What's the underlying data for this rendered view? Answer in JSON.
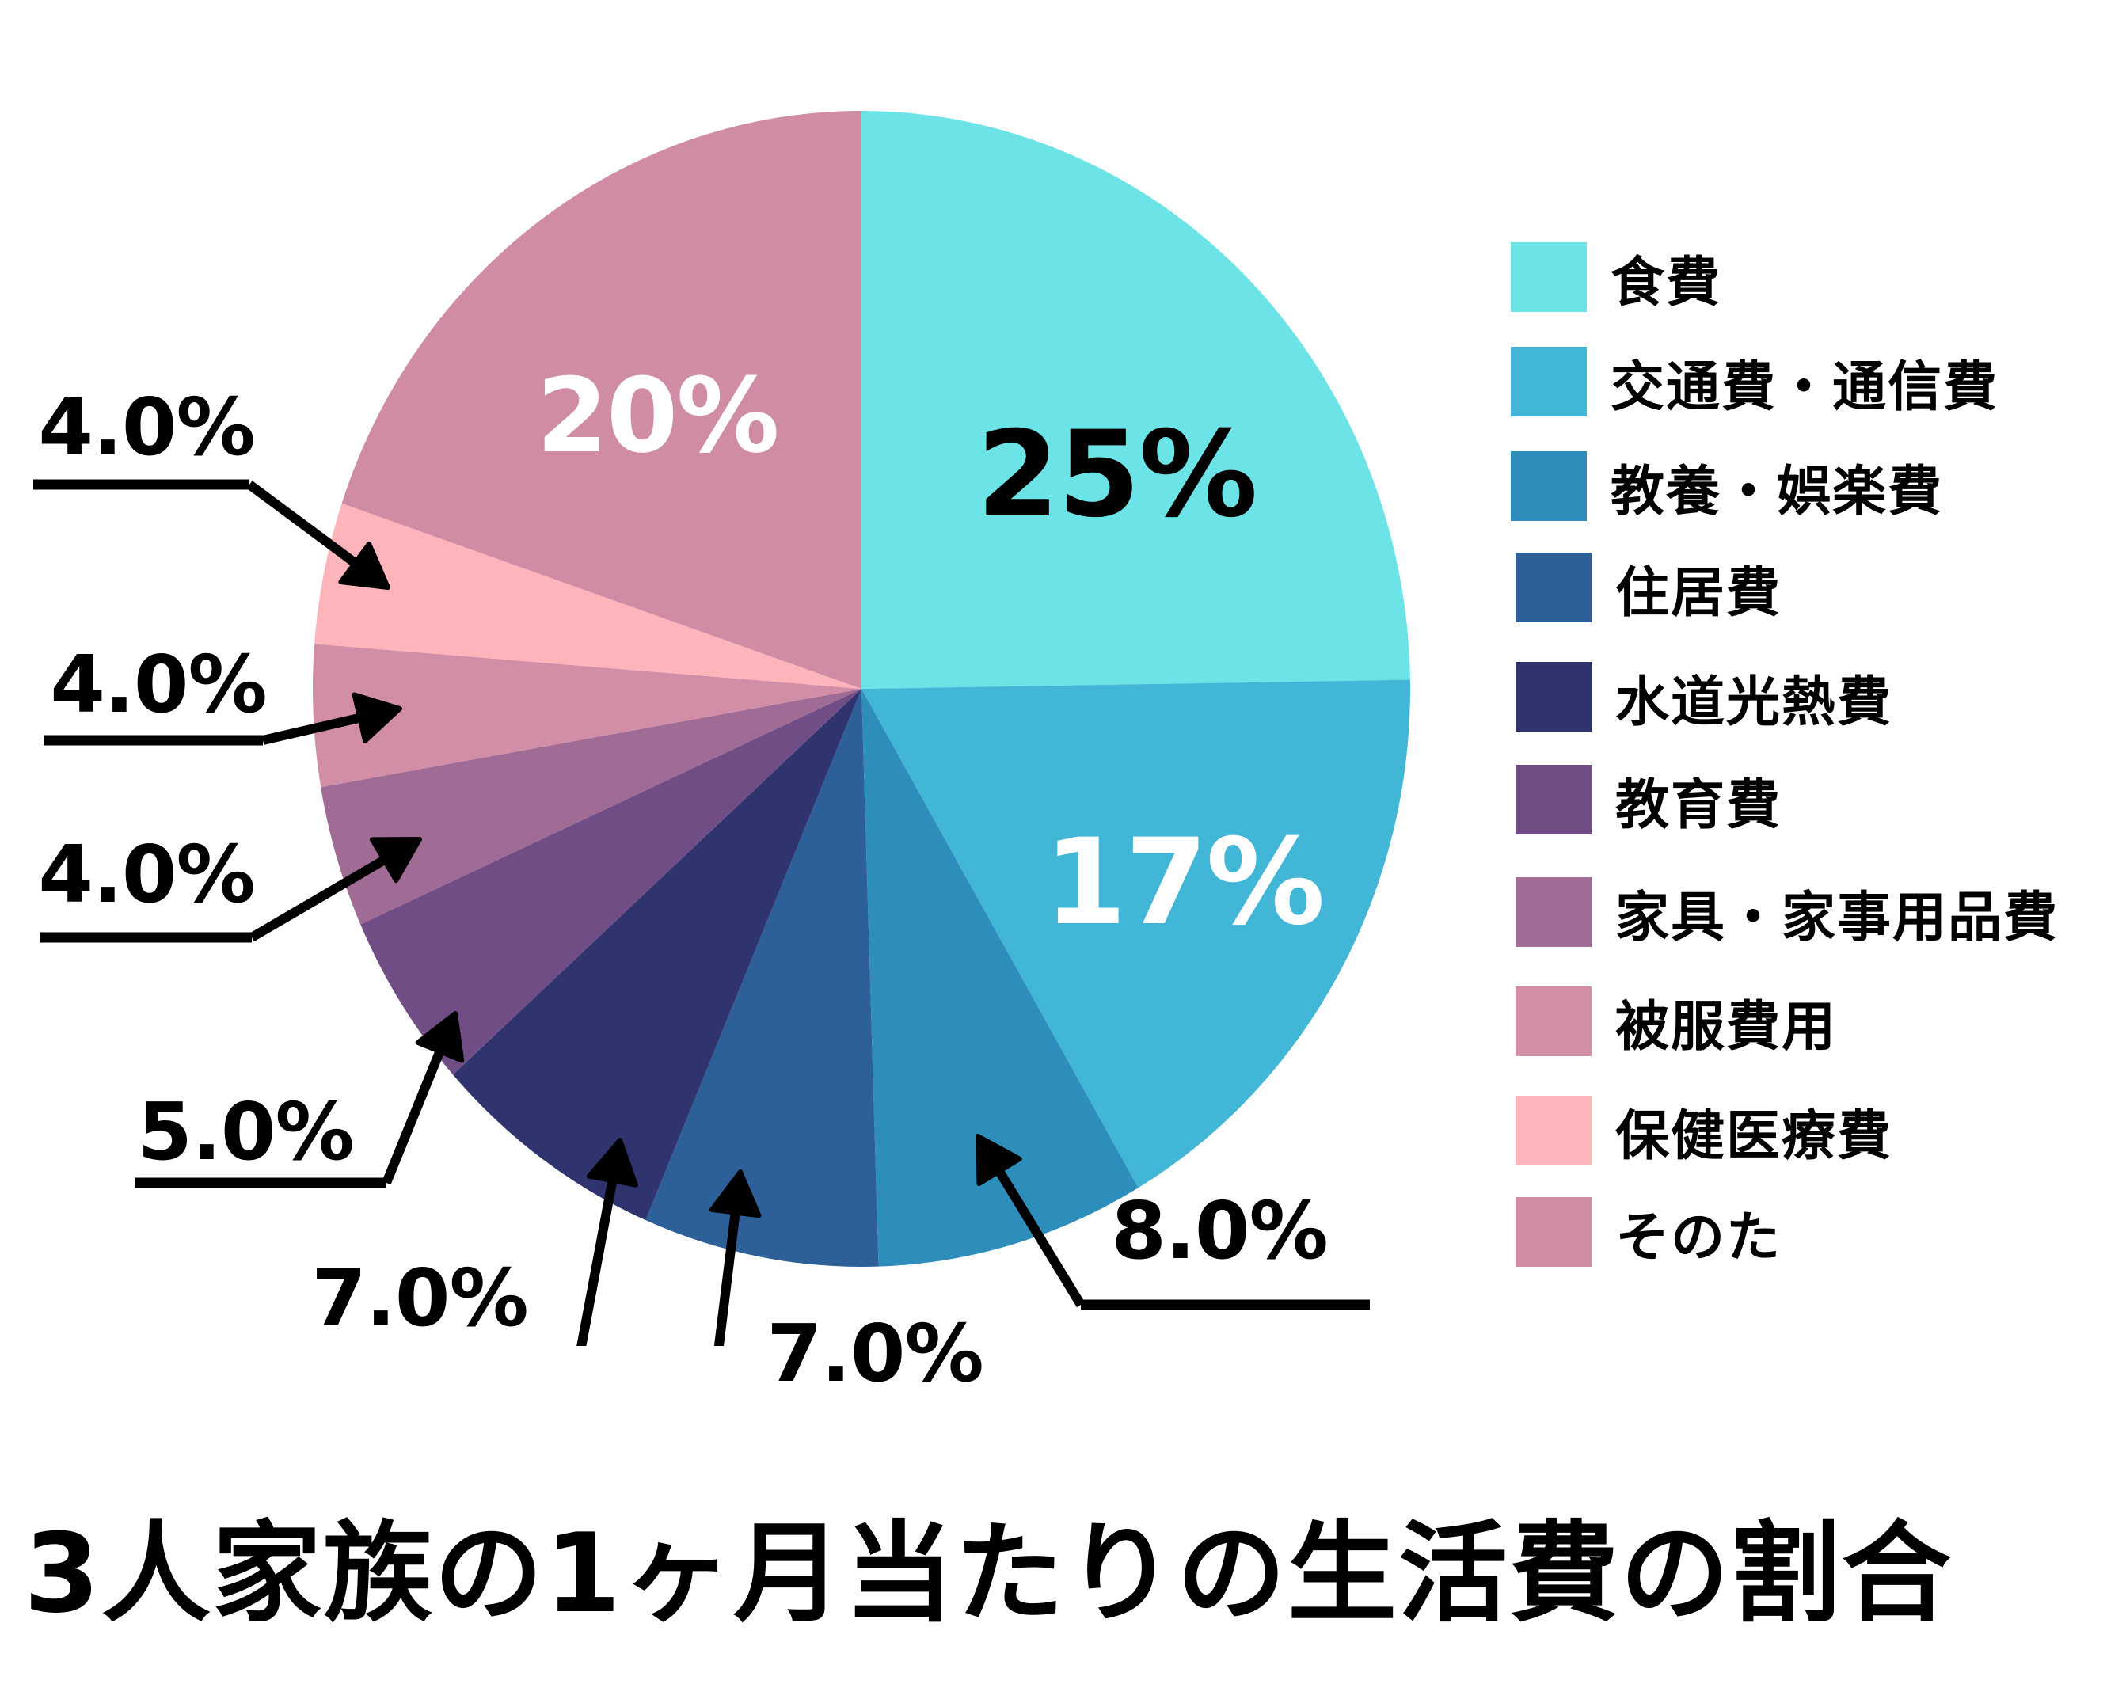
{
  "chart_data": {
    "type": "pie",
    "title": "3人家族の1ヶ月当たりの生活費の割合",
    "start_angle_deg": 0,
    "direction": "clockwise",
    "categories": [
      "食費",
      "交通費・通信費",
      "教養・娯楽費",
      "住居費",
      "水道光熱費",
      "教育費",
      "家具・家事用品費",
      "被服費用",
      "保健医療費",
      "そのた"
    ],
    "values": [
      25,
      17,
      8,
      7,
      7,
      5,
      4,
      4,
      4,
      20
    ],
    "value_labels": [
      "25%",
      "17%",
      "8.0%",
      "7.0%",
      "7.0%",
      "5.0%",
      "4.0%",
      "4.0%",
      "4.0%",
      "20%"
    ],
    "colors": [
      "#6ce3e7",
      "#42b6d6",
      "#2e8ebb",
      "#2d5f99",
      "#30346e",
      "#714d86",
      "#a06c96",
      "#d28ea7",
      "#fdb4ba",
      "#d08ba5"
    ],
    "legend_position": "right",
    "xlabel": "",
    "ylabel": ""
  },
  "legend": {
    "items": [
      {
        "label": "食費",
        "color": "#6ce3e7"
      },
      {
        "label": "交通費・通信費",
        "color": "#42b6d6"
      },
      {
        "label": "教養・娯楽費",
        "color": "#2e8ebb"
      },
      {
        "label": "住居費",
        "color": "#2d5f99"
      },
      {
        "label": "水道光熱費",
        "color": "#30346e"
      },
      {
        "label": "教育費",
        "color": "#714d86"
      },
      {
        "label": "家具・家事用品費",
        "color": "#a06c96"
      },
      {
        "label": "被服費用",
        "color": "#d28ea7"
      },
      {
        "label": "保健医療費",
        "color": "#fdb4ba"
      },
      {
        "label": "そのた",
        "color": "#d08ba5"
      }
    ]
  },
  "labels": {
    "inside": [
      {
        "text": "25%",
        "color": "#000000"
      },
      {
        "text": "17%",
        "color": "#ffffff"
      },
      {
        "text": "20%",
        "color": "#ffffff"
      }
    ],
    "callouts": [
      {
        "text": "8.0%"
      },
      {
        "text": "7.0%"
      },
      {
        "text": "7.0%"
      },
      {
        "text": "5.0%"
      },
      {
        "text": "4.0%"
      },
      {
        "text": "4.0%"
      },
      {
        "text": "4.0%"
      }
    ]
  },
  "title": "3人家族の1ヶ月当たりの生活費の割合"
}
